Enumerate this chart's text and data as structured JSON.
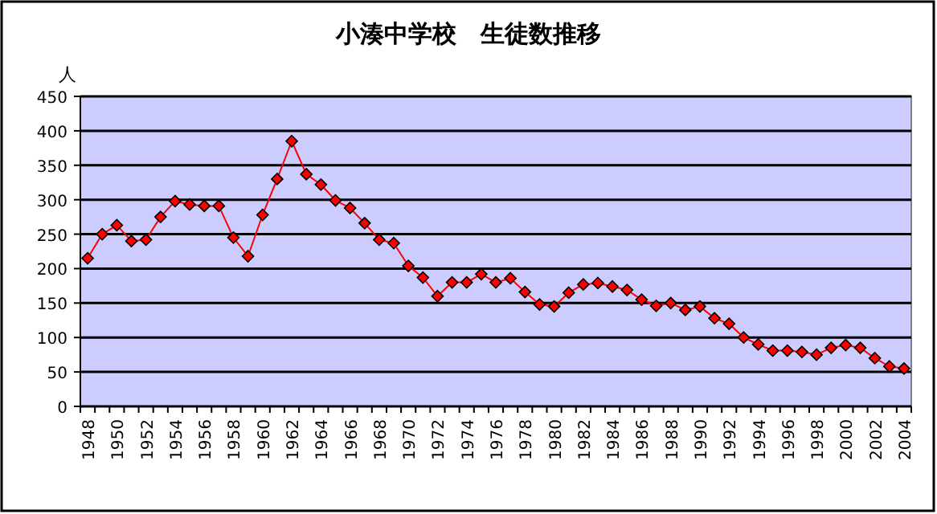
{
  "chart_data": {
    "type": "line",
    "title": "小湊中学校　生徒数推移",
    "ylabel": "人",
    "categories": [
      "1948",
      null,
      "1950",
      null,
      "1952",
      null,
      "1954",
      null,
      "1956",
      null,
      "1958",
      null,
      "1960",
      null,
      "1962",
      null,
      "1964",
      null,
      "1966",
      null,
      "1968",
      null,
      "1970",
      null,
      "1972",
      null,
      "1974",
      null,
      "1976",
      null,
      "1978",
      null,
      "1980",
      null,
      "1982",
      null,
      "1984",
      null,
      "1986",
      null,
      "1988",
      null,
      "1990",
      null,
      "1992",
      null,
      "1994",
      null,
      "1996",
      null,
      "1998",
      null,
      "2000",
      null,
      "2002",
      null,
      "2004"
    ],
    "series": [
      {
        "color": "#ff0000",
        "values": [
          215,
          250,
          263,
          240,
          242,
          275,
          298,
          293,
          291,
          291,
          245,
          218,
          278,
          330,
          385,
          337,
          322,
          299,
          288,
          266,
          242,
          237,
          204,
          187,
          160,
          180,
          180,
          192,
          180,
          186,
          166,
          148,
          145,
          165,
          177,
          179,
          174,
          169,
          155,
          146,
          150,
          140,
          145,
          128,
          120,
          100,
          90,
          81,
          81,
          79,
          75,
          85,
          89,
          85,
          70,
          58,
          55
        ]
      }
    ],
    "ylim": [
      0,
      450
    ],
    "yticks": [
      0,
      50,
      100,
      150,
      200,
      250,
      300,
      350,
      400,
      450
    ],
    "grid": "y",
    "marker": "diamond",
    "line_style": "solid"
  }
}
